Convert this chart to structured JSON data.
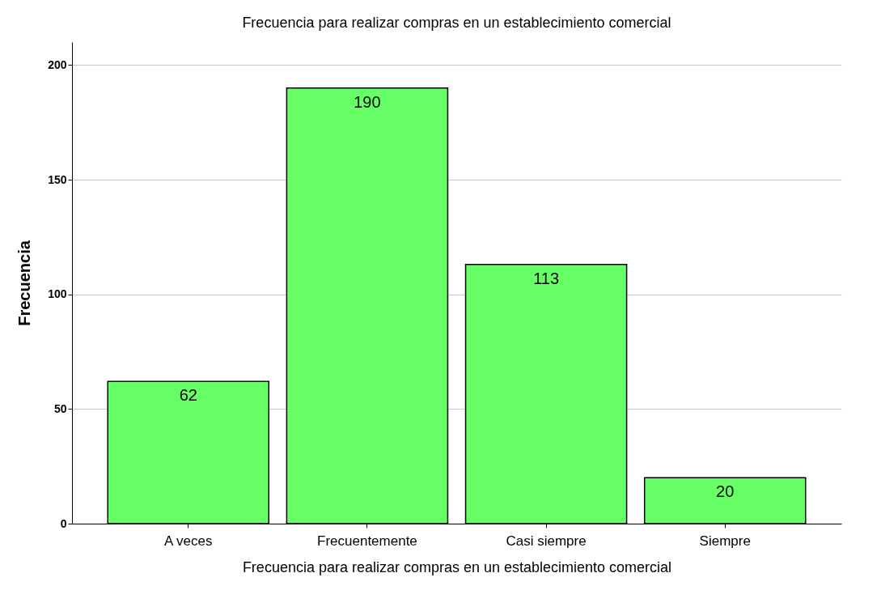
{
  "chart_data": {
    "type": "bar",
    "title": "Frecuencia para realizar compras en un establecimiento comercial",
    "xlabel": "Frecuencia para realizar compras en un establecimiento comercial",
    "ylabel": "Frecuencia",
    "categories": [
      "A veces",
      "Frecuentemente",
      "Casi siempre",
      "Siempre"
    ],
    "values": [
      62,
      190,
      113,
      20
    ],
    "color": "#66ff66",
    "data_labels": true,
    "ylim": [
      0,
      210
    ],
    "yticks": [
      0,
      50,
      100,
      150,
      200
    ],
    "grid": "y"
  }
}
